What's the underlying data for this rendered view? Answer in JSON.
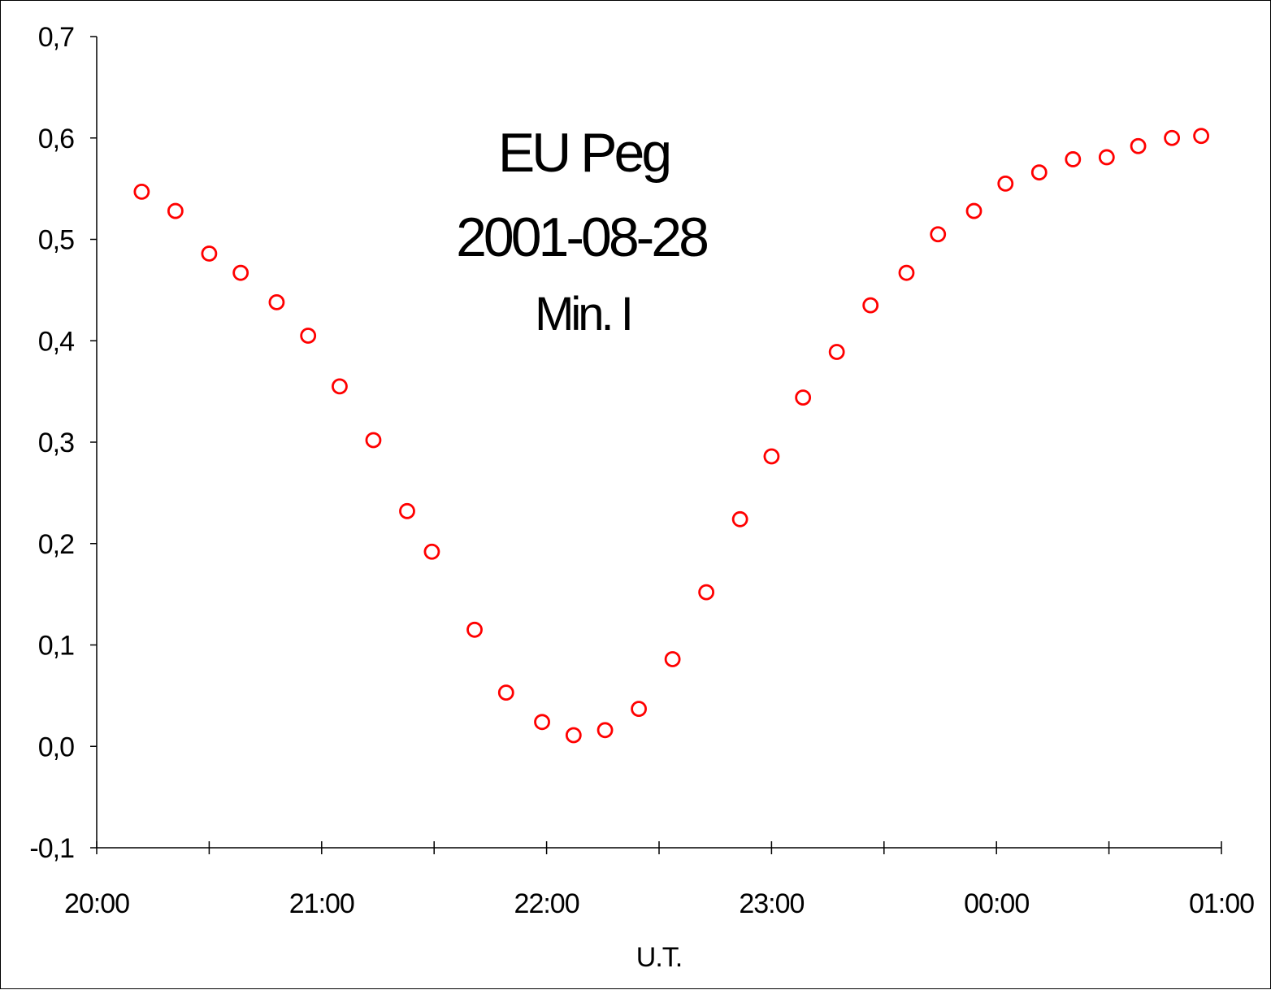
{
  "chart_data": {
    "type": "scatter",
    "title_lines": [
      "EU Peg",
      "2001-08-28",
      "Min. I"
    ],
    "xlabel": "U.T.",
    "ylabel": "",
    "x_unit": "hours",
    "xlim": [
      20,
      25
    ],
    "ylim": [
      -0.1,
      0.7
    ],
    "x_ticks": [
      {
        "value": 20,
        "label": "20:00"
      },
      {
        "value": 21,
        "label": "21:00"
      },
      {
        "value": 22,
        "label": "22:00"
      },
      {
        "value": 23,
        "label": "23:00"
      },
      {
        "value": 24,
        "label": "00:00"
      },
      {
        "value": 25,
        "label": "01:00"
      }
    ],
    "y_ticks": [
      {
        "value": -0.1,
        "label": "-0,1"
      },
      {
        "value": 0.0,
        "label": "0,0"
      },
      {
        "value": 0.1,
        "label": "0,1"
      },
      {
        "value": 0.2,
        "label": "0,2"
      },
      {
        "value": 0.3,
        "label": "0,3"
      },
      {
        "value": 0.4,
        "label": "0,4"
      },
      {
        "value": 0.5,
        "label": "0,5"
      },
      {
        "value": 0.6,
        "label": "0,6"
      },
      {
        "value": 0.7,
        "label": "0,7"
      }
    ],
    "grid": false,
    "legend": "none",
    "marker_color": "#ff0000",
    "series": [
      {
        "x": [
          20.2,
          20.35,
          20.5,
          20.64,
          20.8,
          20.94,
          21.08,
          21.23,
          21.38,
          21.49,
          21.68,
          21.82,
          21.98,
          22.12,
          22.26,
          22.41,
          22.56,
          22.71,
          22.86,
          23.0,
          23.14,
          23.29,
          23.44,
          23.6,
          23.74,
          23.9,
          24.04,
          24.19,
          24.34,
          24.49,
          24.63,
          24.78,
          24.91
        ],
        "y": [
          0.547,
          0.528,
          0.486,
          0.467,
          0.438,
          0.405,
          0.355,
          0.302,
          0.232,
          0.192,
          0.115,
          0.053,
          0.024,
          0.011,
          0.016,
          0.037,
          0.086,
          0.152,
          0.224,
          0.286,
          0.344,
          0.389,
          0.435,
          0.467,
          0.505,
          0.528,
          0.555,
          0.566,
          0.579,
          0.581,
          0.592,
          0.6,
          0.602
        ]
      }
    ]
  }
}
